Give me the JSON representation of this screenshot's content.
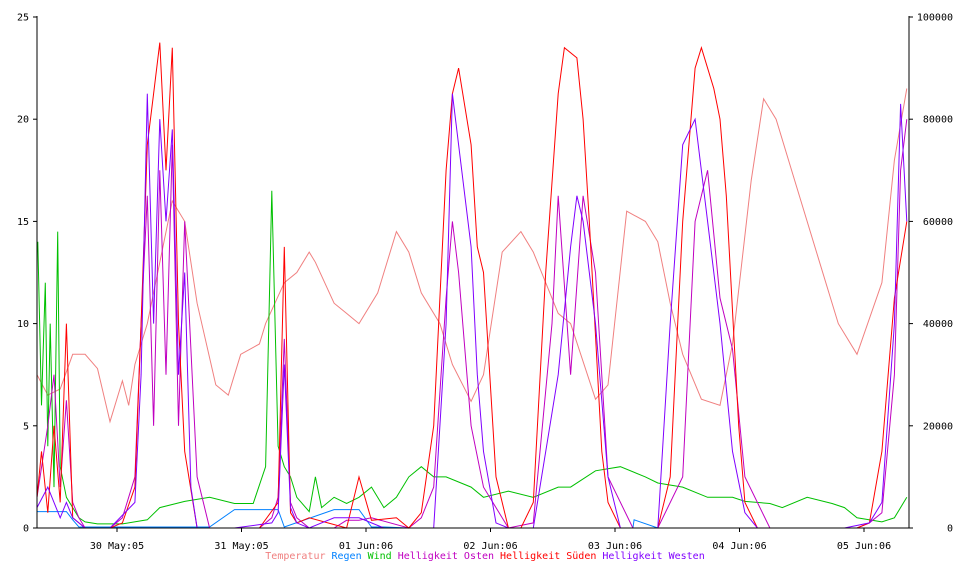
{
  "chart_data": {
    "type": "line",
    "title": "",
    "xlabel": "",
    "ylabel": "",
    "x_ticks": [
      "30 May:05",
      "31 May:05",
      "01 Jun:06",
      "02 Jun:06",
      "03 Jun:06",
      "04 Jun:06",
      "05 Jun:06"
    ],
    "x_range_days": [
      0,
      7
    ],
    "left_axis": {
      "range": [
        0,
        25
      ],
      "ticks": [
        "0",
        "5",
        "10",
        "15",
        "20",
        "25"
      ]
    },
    "right_axis": {
      "range": [
        0,
        100000
      ],
      "ticks": [
        "0",
        "20000",
        "40000",
        "60000",
        "80000",
        "100000"
      ]
    },
    "grid": false,
    "legend_position": "bottom-center",
    "series": [
      {
        "name": "Temperatur",
        "color": "#f08080",
        "axis": "left",
        "x": [
          0.0,
          0.1,
          0.2,
          0.3,
          0.4,
          0.5,
          0.6,
          0.7,
          0.75,
          0.8,
          0.9,
          1.0,
          1.1,
          1.2,
          1.3,
          1.45,
          1.55,
          1.65,
          1.8,
          1.85,
          2.0,
          2.1,
          2.2,
          2.25,
          2.4,
          2.5,
          2.6,
          2.75,
          2.9,
          3.0,
          3.1,
          3.25,
          3.35,
          3.5,
          3.6,
          3.75,
          3.9,
          4.0,
          4.1,
          4.2,
          4.3,
          4.5,
          4.6,
          4.75,
          4.9,
          5.0,
          5.1,
          5.2,
          5.35,
          5.5,
          5.6,
          5.75,
          5.85,
          5.95,
          6.1,
          6.3,
          6.45,
          6.6,
          6.8,
          6.9,
          7.0
        ],
        "y": [
          7.5,
          6.5,
          6.8,
          8.5,
          8.5,
          7.8,
          5.2,
          7.2,
          6.0,
          8.0,
          10.0,
          13.0,
          16.0,
          15.0,
          11.0,
          7.0,
          6.5,
          8.5,
          9.0,
          10.0,
          12.0,
          12.5,
          13.5,
          13.0,
          11.0,
          10.5,
          10.0,
          11.5,
          14.5,
          13.5,
          11.5,
          10.0,
          8.0,
          6.2,
          7.5,
          13.5,
          14.5,
          13.5,
          12.0,
          10.5,
          10.0,
          6.3,
          7.0,
          15.5,
          15.0,
          14.0,
          11.0,
          8.5,
          6.3,
          6.0,
          9.0,
          17.0,
          21.0,
          20.0,
          17.0,
          13.0,
          10.0,
          8.5,
          12.0,
          18.0,
          21.5
        ]
      },
      {
        "name": "Regen",
        "color": "#0080ff",
        "axis": "left",
        "x": [
          0.0,
          0.25,
          0.3,
          0.35,
          1.4,
          1.6,
          1.8,
          1.95,
          2.0,
          2.4,
          2.6,
          2.7,
          2.8,
          3.0,
          4.8,
          4.81,
          5.0,
          6.0,
          7.0
        ],
        "y": [
          0.8,
          0.8,
          0.4,
          0.05,
          0.05,
          0.9,
          0.9,
          0.9,
          0.05,
          0.9,
          0.9,
          0.05,
          0.05,
          0.0,
          0.0,
          0.4,
          0.0,
          0.0,
          0.0
        ]
      },
      {
        "name": "Wind",
        "color": "#00c000",
        "axis": "left",
        "x": [
          0.0,
          0.02,
          0.05,
          0.08,
          0.1,
          0.12,
          0.15,
          0.18,
          0.2,
          0.25,
          0.3,
          0.35,
          0.4,
          0.5,
          0.7,
          0.9,
          1.0,
          1.2,
          1.4,
          1.6,
          1.75,
          1.85,
          1.9,
          1.95,
          2.0,
          2.05,
          2.1,
          2.2,
          2.25,
          2.3,
          2.4,
          2.5,
          2.6,
          2.7,
          2.8,
          2.9,
          3.0,
          3.1,
          3.2,
          3.3,
          3.5,
          3.6,
          3.8,
          4.0,
          4.2,
          4.3,
          4.5,
          4.7,
          4.9,
          5.0,
          5.2,
          5.4,
          5.6,
          5.7,
          5.9,
          6.0,
          6.2,
          6.4,
          6.5,
          6.6,
          6.8,
          6.9,
          7.0
        ],
        "y": [
          13.5,
          14.0,
          6.0,
          12.0,
          4.0,
          10.0,
          2.0,
          14.5,
          3.0,
          1.5,
          1.0,
          0.5,
          0.3,
          0.2,
          0.2,
          0.4,
          1.0,
          1.3,
          1.5,
          1.2,
          1.2,
          3.0,
          16.5,
          4.0,
          3.0,
          2.5,
          1.5,
          0.8,
          2.5,
          1.0,
          1.5,
          1.2,
          1.5,
          2.0,
          1.0,
          1.5,
          2.5,
          3.0,
          2.5,
          2.5,
          2.0,
          1.5,
          1.8,
          1.5,
          2.0,
          2.0,
          2.8,
          3.0,
          2.5,
          2.2,
          2.0,
          1.5,
          1.5,
          1.3,
          1.2,
          1.0,
          1.5,
          1.2,
          1.0,
          0.5,
          0.3,
          0.5,
          1.5
        ]
      },
      {
        "name": "Helligkeit Osten",
        "color": "#c000c0",
        "axis": "right",
        "x": [
          0.0,
          0.1,
          0.15,
          0.2,
          0.25,
          0.3,
          0.35,
          0.4,
          0.6,
          0.7,
          0.8,
          0.85,
          0.9,
          0.95,
          1.0,
          1.05,
          1.1,
          1.15,
          1.2,
          1.3,
          1.4,
          1.6,
          1.8,
          1.9,
          1.95,
          2.0,
          2.05,
          2.1,
          2.2,
          2.4,
          2.5,
          2.6,
          2.7,
          3.0,
          3.1,
          3.2,
          3.3,
          3.35,
          3.4,
          3.5,
          3.6,
          3.8,
          4.0,
          4.15,
          4.2,
          4.3,
          4.4,
          4.5,
          4.6,
          4.8,
          5.0,
          5.2,
          5.3,
          5.4,
          5.5,
          5.6,
          5.7,
          5.9,
          6.0,
          6.2,
          6.4,
          6.6,
          6.7,
          6.8,
          6.9,
          6.95,
          7.0
        ],
        "y": [
          6000,
          20000,
          30000,
          8000,
          25000,
          5000,
          2000,
          0,
          0,
          2000,
          10000,
          40000,
          65000,
          20000,
          70000,
          30000,
          75000,
          20000,
          60000,
          10000,
          0,
          0,
          0,
          2000,
          6000,
          37000,
          5000,
          2000,
          0,
          0,
          1500,
          1500,
          2000,
          0,
          2000,
          8000,
          45000,
          60000,
          50000,
          20000,
          8000,
          0,
          1000,
          40000,
          65000,
          30000,
          65000,
          50000,
          10000,
          0,
          0,
          10000,
          60000,
          70000,
          45000,
          35000,
          10000,
          0,
          0,
          0,
          0,
          0,
          1000,
          3000,
          30000,
          70000,
          80000
        ]
      },
      {
        "name": "Helligkeit Süden",
        "color": "#ff0000",
        "axis": "right",
        "x": [
          0.0,
          0.05,
          0.1,
          0.15,
          0.2,
          0.25,
          0.3,
          0.4,
          0.6,
          0.7,
          0.8,
          0.85,
          0.9,
          0.95,
          1.0,
          1.05,
          1.1,
          1.15,
          1.2,
          1.3,
          1.4,
          1.6,
          1.8,
          1.95,
          2.0,
          2.05,
          2.1,
          2.2,
          2.5,
          2.6,
          2.7,
          2.9,
          3.0,
          3.1,
          3.2,
          3.3,
          3.35,
          3.4,
          3.5,
          3.55,
          3.6,
          3.7,
          3.8,
          3.9,
          4.0,
          4.1,
          4.2,
          4.25,
          4.35,
          4.4,
          4.45,
          4.55,
          4.6,
          4.7,
          5.0,
          5.1,
          5.2,
          5.3,
          5.35,
          5.45,
          5.5,
          5.55,
          5.65,
          5.7,
          5.8,
          6.0,
          6.2,
          6.4,
          6.6,
          6.7,
          6.8,
          6.9,
          7.0
        ],
        "y": [
          6000,
          15000,
          3000,
          20000,
          5000,
          40000,
          2000,
          0,
          0,
          1000,
          8000,
          40000,
          75000,
          85000,
          95000,
          70000,
          94000,
          40000,
          15000,
          0,
          0,
          0,
          0,
          5000,
          55000,
          3000,
          1000,
          2000,
          0,
          10000,
          1500,
          2000,
          0,
          3000,
          20000,
          70000,
          85000,
          90000,
          75000,
          55000,
          50000,
          10000,
          0,
          0,
          5000,
          50000,
          85000,
          94000,
          92000,
          80000,
          60000,
          15000,
          5000,
          0,
          0,
          10000,
          60000,
          90000,
          94000,
          86000,
          80000,
          65000,
          20000,
          5000,
          0,
          0,
          0,
          0,
          0,
          1000,
          15000,
          45000,
          60000
        ]
      },
      {
        "name": "Helligkeit Westen",
        "color": "#8000ff",
        "axis": "right",
        "x": [
          0.0,
          0.1,
          0.2,
          0.25,
          0.3,
          0.35,
          0.4,
          0.6,
          0.8,
          0.85,
          0.9,
          0.95,
          1.0,
          1.05,
          1.1,
          1.15,
          1.2,
          1.25,
          1.3,
          1.4,
          1.6,
          1.9,
          1.95,
          2.0,
          2.05,
          2.1,
          2.2,
          2.4,
          2.6,
          2.8,
          3.0,
          3.2,
          3.3,
          3.35,
          3.4,
          3.5,
          3.55,
          3.6,
          3.7,
          3.8,
          4.0,
          4.2,
          4.3,
          4.35,
          4.4,
          4.5,
          4.6,
          4.7,
          5.0,
          5.1,
          5.2,
          5.3,
          5.4,
          5.5,
          5.6,
          5.7,
          5.8,
          6.0,
          6.2,
          6.5,
          6.7,
          6.8,
          6.9,
          6.95,
          7.0
        ],
        "y": [
          4000,
          8000,
          2000,
          5000,
          2000,
          1000,
          0,
          0,
          5000,
          30000,
          85000,
          40000,
          80000,
          60000,
          78000,
          30000,
          50000,
          8000,
          0,
          0,
          0,
          1000,
          3000,
          32000,
          4000,
          1000,
          0,
          2000,
          2000,
          0,
          0,
          0,
          40000,
          85000,
          75000,
          55000,
          30000,
          15000,
          1000,
          0,
          0,
          30000,
          55000,
          65000,
          60000,
          40000,
          10000,
          0,
          0,
          40000,
          75000,
          80000,
          60000,
          40000,
          15000,
          3000,
          0,
          0,
          0,
          0,
          1000,
          5000,
          40000,
          83000,
          60000
        ]
      }
    ]
  }
}
